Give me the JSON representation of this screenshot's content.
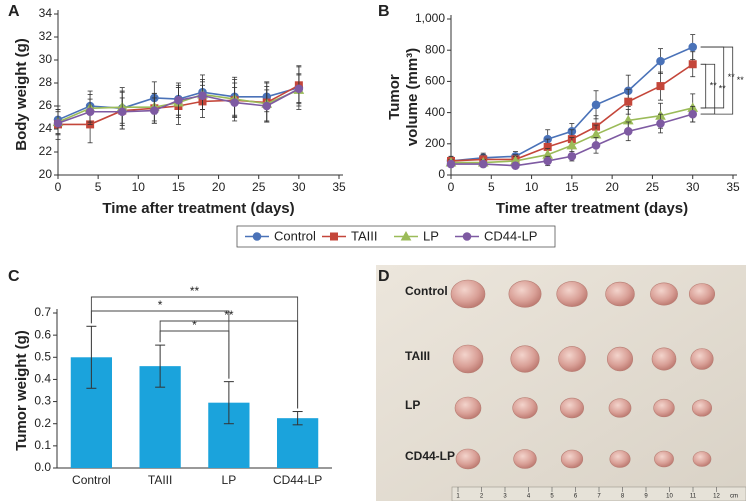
{
  "chart_data": [
    {
      "panel": "A",
      "type": "line",
      "xlabel": "Time after treatment (days)",
      "ylabel": "Body weight (g)",
      "x": [
        0,
        4,
        8,
        12,
        15,
        18,
        22,
        26,
        30
      ],
      "xlim": [
        0,
        35
      ],
      "xticks": [
        0,
        5,
        10,
        15,
        20,
        25,
        30,
        35
      ],
      "ylim": [
        20,
        34
      ],
      "yticks": [
        20,
        22,
        24,
        26,
        28,
        30,
        32,
        34
      ],
      "series": [
        {
          "name": "Control",
          "color": "#4a72b8",
          "marker": "circle",
          "values": [
            24.8,
            26.0,
            25.8,
            26.7,
            26.6,
            27.2,
            26.8,
            26.8,
            27.6
          ],
          "errors": [
            1.2,
            1.3,
            1.8,
            1.4,
            1.4,
            1.5,
            1.7,
            1.3,
            1.9
          ]
        },
        {
          "name": "TAIII",
          "color": "#c4463a",
          "marker": "square",
          "values": [
            24.4,
            24.4,
            25.6,
            25.8,
            26.0,
            26.4,
            26.5,
            26.3,
            27.8
          ],
          "errors": [
            1.3,
            1.6,
            1.6,
            1.3,
            1.6,
            1.4,
            1.8,
            1.7,
            1.6
          ]
        },
        {
          "name": "LP",
          "color": "#9bbb59",
          "marker": "triangle",
          "values": [
            24.6,
            25.8,
            25.9,
            25.9,
            26.3,
            27.0,
            26.6,
            26.2,
            27.4
          ],
          "errors": [
            1.1,
            1.2,
            1.4,
            1.2,
            1.3,
            1.3,
            1.4,
            1.5,
            1.4
          ]
        },
        {
          "name": "CD44-LP",
          "color": "#7e5aa2",
          "marker": "circle",
          "values": [
            24.5,
            25.5,
            25.5,
            25.6,
            26.5,
            26.9,
            26.3,
            26.0,
            27.5
          ],
          "errors": [
            1.0,
            1.1,
            1.2,
            1.1,
            1.3,
            1.2,
            1.3,
            1.4,
            1.2
          ]
        }
      ]
    },
    {
      "panel": "B",
      "type": "line",
      "xlabel": "Time after treatment (days)",
      "ylabel": [
        "Tumor",
        "volume (mm³)"
      ],
      "x": [
        0,
        4,
        8,
        12,
        15,
        18,
        22,
        26,
        30
      ],
      "xlim": [
        0,
        35
      ],
      "xticks": [
        0,
        5,
        10,
        15,
        20,
        25,
        30,
        35
      ],
      "ylim": [
        0,
        1000
      ],
      "yticks": [
        0,
        200,
        400,
        600,
        800,
        {
          "value": 1000,
          "label": "1,000"
        }
      ],
      "series": [
        {
          "color": "#4a72b8",
          "marker": "circle",
          "values": [
            90,
            110,
            120,
            230,
            280,
            450,
            540,
            730,
            820
          ],
          "errors": [
            30,
            30,
            30,
            60,
            50,
            90,
            100,
            80,
            80
          ]
        },
        {
          "color": "#c4463a",
          "marker": "square",
          "values": [
            90,
            100,
            100,
            180,
            230,
            310,
            470,
            570,
            710
          ],
          "errors": [
            25,
            30,
            30,
            50,
            60,
            70,
            80,
            90,
            80
          ]
        },
        {
          "color": "#9bbb59",
          "marker": "triangle",
          "values": [
            80,
            80,
            90,
            130,
            190,
            260,
            350,
            380,
            430
          ],
          "errors": [
            20,
            20,
            30,
            40,
            50,
            60,
            70,
            80,
            90
          ]
        },
        {
          "color": "#7e5aa2",
          "marker": "circle",
          "values": [
            70,
            70,
            60,
            90,
            120,
            190,
            280,
            330,
            390
          ],
          "errors": [
            20,
            20,
            20,
            30,
            30,
            50,
            60,
            60,
            50
          ]
        }
      ],
      "annotations": [
        "**",
        "**",
        "**",
        "**"
      ]
    },
    {
      "panel": "C",
      "type": "bar",
      "ylabel": "Tumor weight (g)",
      "color": "#1ba3dc",
      "categories": [
        "Control",
        "TAIII",
        "LP",
        "CD44-LP"
      ],
      "values": [
        0.5,
        0.46,
        0.295,
        0.225
      ],
      "errors": [
        0.14,
        0.095,
        0.095,
        0.03
      ],
      "ylim": [
        0,
        0.7
      ],
      "yticks": [
        {
          "value": 0,
          "label": "0.0"
        },
        0.1,
        0.2,
        0.3,
        0.4,
        0.5,
        0.6,
        0.7
      ],
      "annotations": [
        "**",
        "*",
        "**",
        "*"
      ]
    },
    {
      "panel": "D",
      "type": "photo",
      "rows": [
        "Control",
        "TAIII",
        "LP",
        "CD44-LP"
      ],
      "ruler_ticks": [
        1,
        2,
        3,
        4,
        5,
        6,
        7,
        8,
        9,
        10,
        11,
        12
      ],
      "ruler_unit": "cm"
    }
  ]
}
